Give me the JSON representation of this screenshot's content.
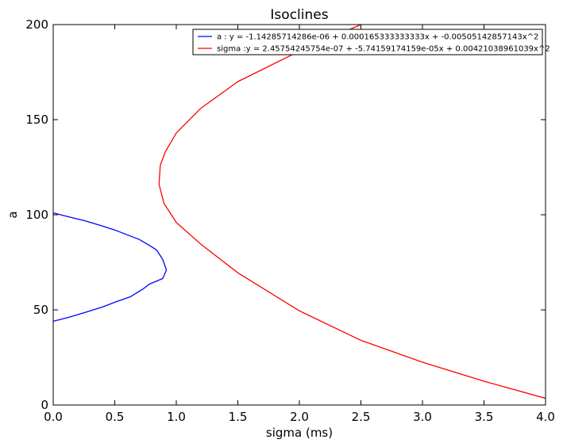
{
  "chart_data": {
    "type": "line",
    "title": "Isoclines",
    "xlabel": "sigma (ms)",
    "ylabel": "a",
    "xlim": [
      0.0,
      4.0
    ],
    "ylim": [
      0,
      200
    ],
    "xticks": [
      "0.0",
      "0.5",
      "1.0",
      "1.5",
      "2.0",
      "2.5",
      "3.0",
      "3.5",
      "4.0"
    ],
    "yticks": [
      "0",
      "50",
      "100",
      "150",
      "200"
    ],
    "grid": false,
    "legend_position": "upper-right",
    "series": [
      {
        "name": "a : y = -1.14285714286e-06 + 0.000165333333333x + -0.00505142857143x^2",
        "color": "#0000ff",
        "points": [
          [
            0.0,
            44.0
          ],
          [
            0.12,
            46.0
          ],
          [
            0.25,
            48.5
          ],
          [
            0.4,
            51.5
          ],
          [
            0.52,
            54.5
          ],
          [
            0.63,
            57.0
          ],
          [
            0.73,
            61.0
          ],
          [
            0.78,
            63.5
          ],
          [
            0.89,
            66.5
          ],
          [
            0.92,
            71.0
          ],
          [
            0.89,
            76.5
          ],
          [
            0.84,
            81.5
          ],
          [
            0.78,
            84.0
          ],
          [
            0.7,
            87.0
          ],
          [
            0.6,
            89.5
          ],
          [
            0.5,
            92.0
          ],
          [
            0.38,
            94.5
          ],
          [
            0.25,
            97.0
          ],
          [
            0.12,
            99.0
          ],
          [
            0.0,
            101.0
          ]
        ]
      },
      {
        "name": "sigma :y = 2.45754245754e-07 + -5.74159174159e-05x + 0.00421038961039x^2",
        "color": "#ff0000",
        "points": [
          [
            4.0,
            3.5
          ],
          [
            3.5,
            12.5
          ],
          [
            3.0,
            22.5
          ],
          [
            2.5,
            34.0
          ],
          [
            2.0,
            49.5
          ],
          [
            1.5,
            69.5
          ],
          [
            1.2,
            84.5
          ],
          [
            1.0,
            96.0
          ],
          [
            0.9,
            106.0
          ],
          [
            0.86,
            116.0
          ],
          [
            0.87,
            126.0
          ],
          [
            0.91,
            133.0
          ],
          [
            1.0,
            143.0
          ],
          [
            1.2,
            156.0
          ],
          [
            1.5,
            170.0
          ],
          [
            2.0,
            186.0
          ],
          [
            2.5,
            200.0
          ]
        ]
      }
    ]
  }
}
